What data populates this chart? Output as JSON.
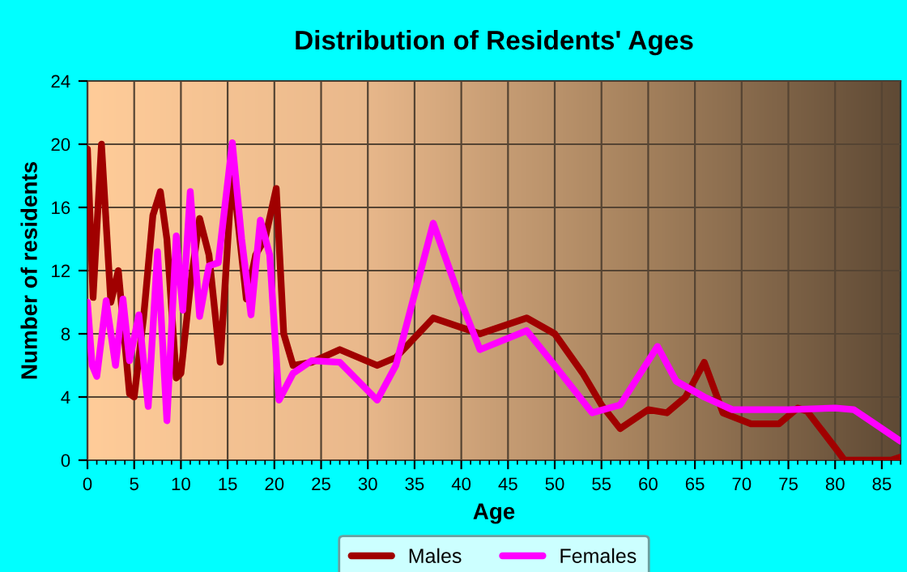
{
  "chart_data": {
    "type": "line",
    "title": "Distribution of Residents' Ages",
    "xlabel": "Age",
    "ylabel": "Number of residents",
    "xlim": [
      0,
      87
    ],
    "ylim": [
      0,
      24
    ],
    "xticks": [
      0,
      5,
      10,
      15,
      20,
      25,
      30,
      35,
      40,
      45,
      50,
      55,
      60,
      65,
      70,
      75,
      80,
      85
    ],
    "yticks": [
      0,
      4,
      8,
      12,
      16,
      20,
      24
    ],
    "grid": true,
    "legend": "bottom",
    "marker": "none",
    "line_style": "solid",
    "series": [
      {
        "name": "Males",
        "color": "#a00000",
        "x": [
          0,
          0.6,
          1.5,
          2.5,
          3.3,
          4.5,
          5,
          6,
          7,
          7.8,
          8.5,
          9.5,
          10,
          11,
          12,
          13,
          14.2,
          15.5,
          17,
          18,
          19,
          20.2,
          21,
          22,
          24,
          27,
          31,
          33,
          37,
          42,
          47,
          50,
          53,
          55,
          57,
          60,
          62,
          64,
          66,
          68,
          71,
          74,
          76,
          77,
          80,
          81,
          86,
          87
        ],
        "values": [
          19.7,
          10.3,
          20,
          10,
          12,
          4.2,
          4,
          9,
          15.5,
          17,
          14,
          5.2,
          5.5,
          11,
          15.3,
          13,
          6.2,
          18.4,
          10.2,
          13,
          14,
          17.2,
          8,
          6,
          6.2,
          7,
          6,
          6.5,
          9,
          8,
          9,
          8,
          5.5,
          3.5,
          2,
          3.2,
          3,
          4,
          6.2,
          3,
          2.3,
          2.3,
          3.3,
          3.1,
          0.8,
          0,
          0,
          0.2
        ]
      },
      {
        "name": "Females",
        "color": "#ff00ff",
        "x": [
          0,
          0.5,
          1,
          2,
          3,
          3.8,
          4.5,
          5.5,
          6.5,
          7.5,
          8.5,
          9.5,
          10.2,
          11,
          12,
          13,
          14,
          15.5,
          16.5,
          17.5,
          18.5,
          19.5,
          20.5,
          22,
          24,
          27,
          31,
          33,
          37,
          40,
          42,
          47,
          50,
          54,
          57,
          61,
          63,
          66,
          69,
          75,
          80,
          82,
          87
        ],
        "values": [
          10,
          6,
          5.3,
          10.1,
          6,
          10.2,
          6.3,
          9.2,
          3.4,
          13.2,
          2.5,
          14.2,
          9.5,
          17,
          9.1,
          12.3,
          12.5,
          20.1,
          14,
          9.2,
          15.2,
          13,
          3.8,
          5.5,
          6.3,
          6.2,
          3.8,
          6,
          15,
          10,
          7,
          8.2,
          6,
          3,
          3.5,
          7.2,
          5,
          4,
          3.2,
          3.2,
          3.3,
          3.2,
          1.2
        ]
      }
    ]
  }
}
